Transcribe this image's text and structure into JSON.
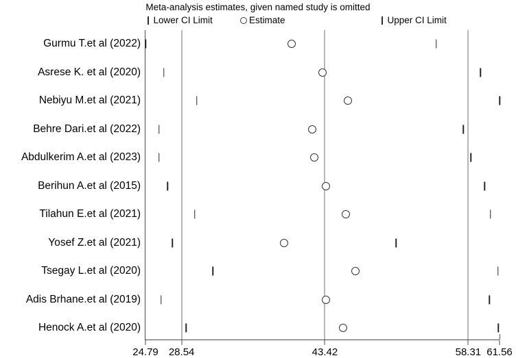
{
  "title": "Meta-analysis estimates, given named study is omitted",
  "legend": {
    "lower_label": "Lower CI Limit",
    "estimate_label": "Estimate",
    "upper_label": "Upper CI Limit"
  },
  "colors": {
    "foreground": "#000000",
    "background": "#ffffff",
    "gridline": "#6b6b6b"
  },
  "chart_data": {
    "type": "scatter",
    "title": "Meta-analysis estimates, given named study is omitted",
    "xlabel": "",
    "ylabel": "",
    "xlim": [
      24.79,
      61.56
    ],
    "x_ticks": [
      24.79,
      28.54,
      43.42,
      58.31,
      61.56
    ],
    "x_tick_labels": [
      "24.79",
      "28.54",
      "43.42",
      "58.31",
      "61.56"
    ],
    "gridlines_x": [
      28.54,
      43.42,
      58.31
    ],
    "grid": true,
    "legend_position": "top",
    "legend_entries": [
      "Lower CI Limit",
      "Estimate",
      "Upper CI Limit"
    ],
    "pooled": {
      "lower_ci": 28.54,
      "estimate": 43.42,
      "upper_ci": 58.31
    },
    "studies": [
      {
        "label": "Gurmu T.et al (2022)",
        "lower": 24.79,
        "estimate": 40.0,
        "upper": 55.0
      },
      {
        "label": "Asrese K. et al (2020)",
        "lower": 26.7,
        "estimate": 43.2,
        "upper": 59.6
      },
      {
        "label": "Nebiyu M.et al (2021)",
        "lower": 30.1,
        "estimate": 45.8,
        "upper": 61.56
      },
      {
        "label": "Behre Dari.et al (2022)",
        "lower": 26.2,
        "estimate": 42.1,
        "upper": 57.8
      },
      {
        "label": "Abdulkerim A.et al (2023)",
        "lower": 26.2,
        "estimate": 42.3,
        "upper": 58.6
      },
      {
        "label": "Berihun A.et al (2015)",
        "lower": 27.1,
        "estimate": 43.5,
        "upper": 60.0
      },
      {
        "label": "Tilahun E.et al (2021)",
        "lower": 29.9,
        "estimate": 45.6,
        "upper": 60.6
      },
      {
        "label": "Yosef Z.et al (2021)",
        "lower": 27.6,
        "estimate": 39.2,
        "upper": 50.8
      },
      {
        "label": "Tsegay L.et al (2020)",
        "lower": 31.8,
        "estimate": 46.6,
        "upper": 61.4
      },
      {
        "label": "Adis Brhane.et al (2019)",
        "lower": 26.4,
        "estimate": 43.5,
        "upper": 60.5
      },
      {
        "label": "Henock A.et al (2020)",
        "lower": 29.0,
        "estimate": 45.3,
        "upper": 61.45
      }
    ]
  }
}
